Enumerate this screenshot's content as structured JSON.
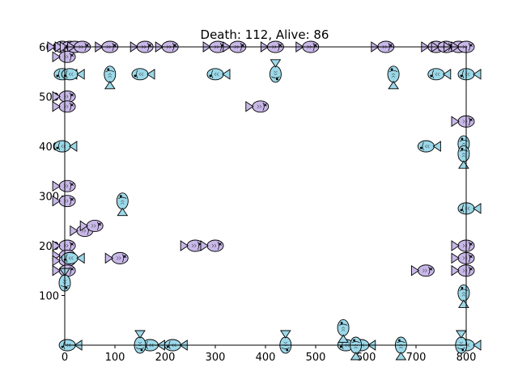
{
  "chart_data": {
    "type": "scatter",
    "title": "Death: 112, Alive: 86",
    "xlabel": "",
    "ylabel": "",
    "xlim": [
      -10,
      820
    ],
    "ylim": [
      -10,
      610
    ],
    "xticks": [
      0,
      100,
      200,
      300,
      400,
      500,
      600,
      700,
      800
    ],
    "yticks": [
      100,
      200,
      300,
      400,
      500,
      600
    ],
    "grid": false,
    "legend": "none",
    "colors": {
      "dead": "#c8b8e8",
      "alive": "#9cd8e8",
      "outline": "#000000"
    },
    "series": [
      {
        "marker": "fish-dead-icon",
        "points": [
          {
            "x": -5,
            "y": 600,
            "dir": "right"
          },
          {
            "x": 10,
            "y": 600,
            "dir": "right"
          },
          {
            "x": 20,
            "y": 600,
            "dir": "right"
          },
          {
            "x": 35,
            "y": 600,
            "dir": "right"
          },
          {
            "x": 90,
            "y": 600,
            "dir": "right"
          },
          {
            "x": 160,
            "y": 600,
            "dir": "right"
          },
          {
            "x": 210,
            "y": 600,
            "dir": "right"
          },
          {
            "x": 305,
            "y": 600,
            "dir": "right"
          },
          {
            "x": 345,
            "y": 600,
            "dir": "right"
          },
          {
            "x": 420,
            "y": 600,
            "dir": "right"
          },
          {
            "x": 490,
            "y": 600,
            "dir": "right"
          },
          {
            "x": 640,
            "y": 600,
            "dir": "right"
          },
          {
            "x": 740,
            "y": 600,
            "dir": "right"
          },
          {
            "x": 760,
            "y": 600,
            "dir": "right"
          },
          {
            "x": 785,
            "y": 600,
            "dir": "right"
          },
          {
            "x": 800,
            "y": 600,
            "dir": "right"
          },
          {
            "x": 5,
            "y": 580,
            "dir": "right"
          },
          {
            "x": 5,
            "y": 500,
            "dir": "right"
          },
          {
            "x": 5,
            "y": 480,
            "dir": "right"
          },
          {
            "x": 390,
            "y": 480,
            "dir": "right"
          },
          {
            "x": 5,
            "y": 320,
            "dir": "right"
          },
          {
            "x": 5,
            "y": 290,
            "dir": "right"
          },
          {
            "x": 5,
            "y": 200,
            "dir": "right"
          },
          {
            "x": 5,
            "y": 180,
            "dir": "right"
          },
          {
            "x": 5,
            "y": 170,
            "dir": "right"
          },
          {
            "x": 5,
            "y": 150,
            "dir": "right"
          },
          {
            "x": 40,
            "y": 230,
            "dir": "right"
          },
          {
            "x": 60,
            "y": 240,
            "dir": "right"
          },
          {
            "x": 110,
            "y": 175,
            "dir": "right"
          },
          {
            "x": 260,
            "y": 200,
            "dir": "right"
          },
          {
            "x": 300,
            "y": 200,
            "dir": "right"
          },
          {
            "x": 720,
            "y": 150,
            "dir": "right"
          },
          {
            "x": 800,
            "y": 450,
            "dir": "right"
          },
          {
            "x": 800,
            "y": 200,
            "dir": "right"
          },
          {
            "x": 800,
            "y": 175,
            "dir": "right"
          },
          {
            "x": 800,
            "y": 150,
            "dir": "right"
          }
        ]
      },
      {
        "marker": "fish-alive-icon",
        "points": [
          {
            "x": -5,
            "y": 545,
            "dir": "left"
          },
          {
            "x": 10,
            "y": 545,
            "dir": "left"
          },
          {
            "x": 150,
            "y": 545,
            "dir": "left"
          },
          {
            "x": 300,
            "y": 545,
            "dir": "left"
          },
          {
            "x": 740,
            "y": 545,
            "dir": "left"
          },
          {
            "x": 800,
            "y": 545,
            "dir": "left"
          },
          {
            "x": -5,
            "y": 400,
            "dir": "left"
          },
          {
            "x": 720,
            "y": 400,
            "dir": "left"
          },
          {
            "x": 800,
            "y": 275,
            "dir": "left"
          },
          {
            "x": 10,
            "y": 175,
            "dir": "left"
          },
          {
            "x": 5,
            "y": 0,
            "dir": "left"
          },
          {
            "x": 170,
            "y": 0,
            "dir": "left"
          },
          {
            "x": 215,
            "y": 0,
            "dir": "left"
          },
          {
            "x": 560,
            "y": 0,
            "dir": "left"
          },
          {
            "x": 590,
            "y": 0,
            "dir": "left"
          },
          {
            "x": 800,
            "y": 0,
            "dir": "left"
          },
          {
            "x": 90,
            "y": 545,
            "dir": "up"
          },
          {
            "x": 655,
            "y": 545,
            "dir": "up"
          },
          {
            "x": 115,
            "y": 290,
            "dir": "up"
          },
          {
            "x": 795,
            "y": 405,
            "dir": "up"
          },
          {
            "x": 795,
            "y": 385,
            "dir": "up"
          },
          {
            "x": 795,
            "y": 105,
            "dir": "up"
          },
          {
            "x": 555,
            "y": 35,
            "dir": "up"
          },
          {
            "x": 670,
            "y": 0,
            "dir": "up"
          },
          {
            "x": 580,
            "y": 0,
            "dir": "up"
          },
          {
            "x": 440,
            "y": 0,
            "dir": "down"
          },
          {
            "x": 0,
            "y": 125,
            "dir": "down"
          },
          {
            "x": 150,
            "y": 0,
            "dir": "down"
          },
          {
            "x": 420,
            "y": 545,
            "dir": "down"
          },
          {
            "x": 790,
            "y": 0,
            "dir": "down"
          }
        ]
      }
    ]
  }
}
